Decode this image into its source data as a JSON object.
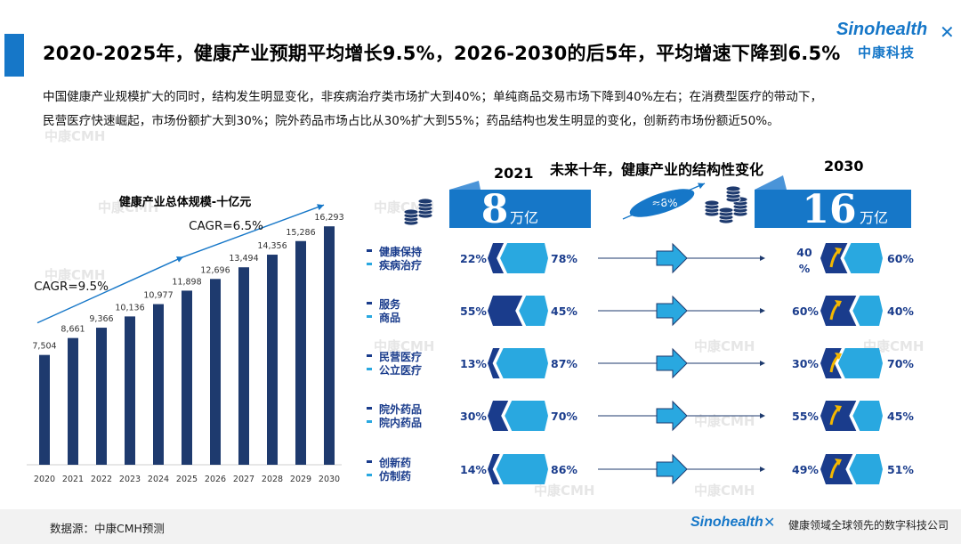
{
  "header": {
    "title": "2020-2025年，健康产业预期平均增长9.5%，2026-2030的后5年，平均增速下降到6.5%",
    "logo_en": "Sinohealth",
    "logo_cn": "中康科技"
  },
  "description": {
    "line1": "中国健康产业规模扩大的同时，结构发生明显变化，非疾病治疗类市场扩大到40%；单纯商品交易市场下降到40%左右；在消费型医疗的带动下，",
    "line2": "民营医疗快速崛起，市场份额扩大到30%；院外药品市场占比从30%扩大到55%；药品结构也发生明显的变化，创新药市场份额近50%。"
  },
  "watermark": "中康CMH",
  "chart_data": [
    {
      "type": "bar",
      "title": "健康产业总体规模-十亿元",
      "categories": [
        "2020",
        "2021",
        "2022",
        "2023",
        "2024",
        "2025",
        "2026",
        "2027",
        "2028",
        "2029",
        "2030"
      ],
      "values": [
        7504,
        8661,
        9366,
        10136,
        10977,
        11898,
        12696,
        13494,
        14356,
        15286,
        16293
      ],
      "value_labels": [
        "7,504",
        "8,661",
        "9,366",
        "10,136",
        "10,977",
        "11,898",
        "12,696",
        "13,494",
        "14,356",
        "15,286",
        "16,293"
      ],
      "ylim": [
        0,
        17500
      ],
      "annotations": [
        "CAGR=9.5%",
        "CAGR=6.5%"
      ],
      "bar_color": "#1e3a6e"
    },
    {
      "type": "table",
      "title": "未来十年，健康产业的结构性变化",
      "year_start": "2021",
      "year_end": "2030",
      "growth_label": "≈8%",
      "size_start": "8",
      "size_end": "16",
      "unit": "万亿",
      "rows": [
        {
          "a": "健康保持",
          "b": "疾病治疗",
          "start_a": "22%",
          "start_b": "78%",
          "end_a": "40\n%",
          "end_b": "60%",
          "start_a_val": 22,
          "end_a_val": 40
        },
        {
          "a": "服务",
          "b": "商品",
          "start_a": "55%",
          "start_b": "45%",
          "end_a": "60%",
          "end_b": "40%",
          "start_a_val": 55,
          "end_a_val": 60
        },
        {
          "a": "民营医疗",
          "b": "公立医疗",
          "start_a": "13%",
          "start_b": "87%",
          "end_a": "30%",
          "end_b": "70%",
          "start_a_val": 13,
          "end_a_val": 30
        },
        {
          "a": "院外药品",
          "b": "院内药品",
          "start_a": "30%",
          "start_b": "70%",
          "end_a": "55%",
          "end_b": "45%",
          "start_a_val": 30,
          "end_a_val": 55
        },
        {
          "a": "创新药",
          "b": "仿制药",
          "start_a": "14%",
          "start_b": "86%",
          "end_a": "49%",
          "end_b": "51%",
          "start_a_val": 14,
          "end_a_val": 49
        }
      ],
      "colors": {
        "dark": "#1a3c8c",
        "light": "#29a8e0",
        "banner": "#1677c8"
      }
    }
  ],
  "footer": {
    "source": "数据源：中康CMH预测",
    "logo_en": "Sinohealth",
    "slogan": "健康领域全球领先的数字科技公司"
  }
}
